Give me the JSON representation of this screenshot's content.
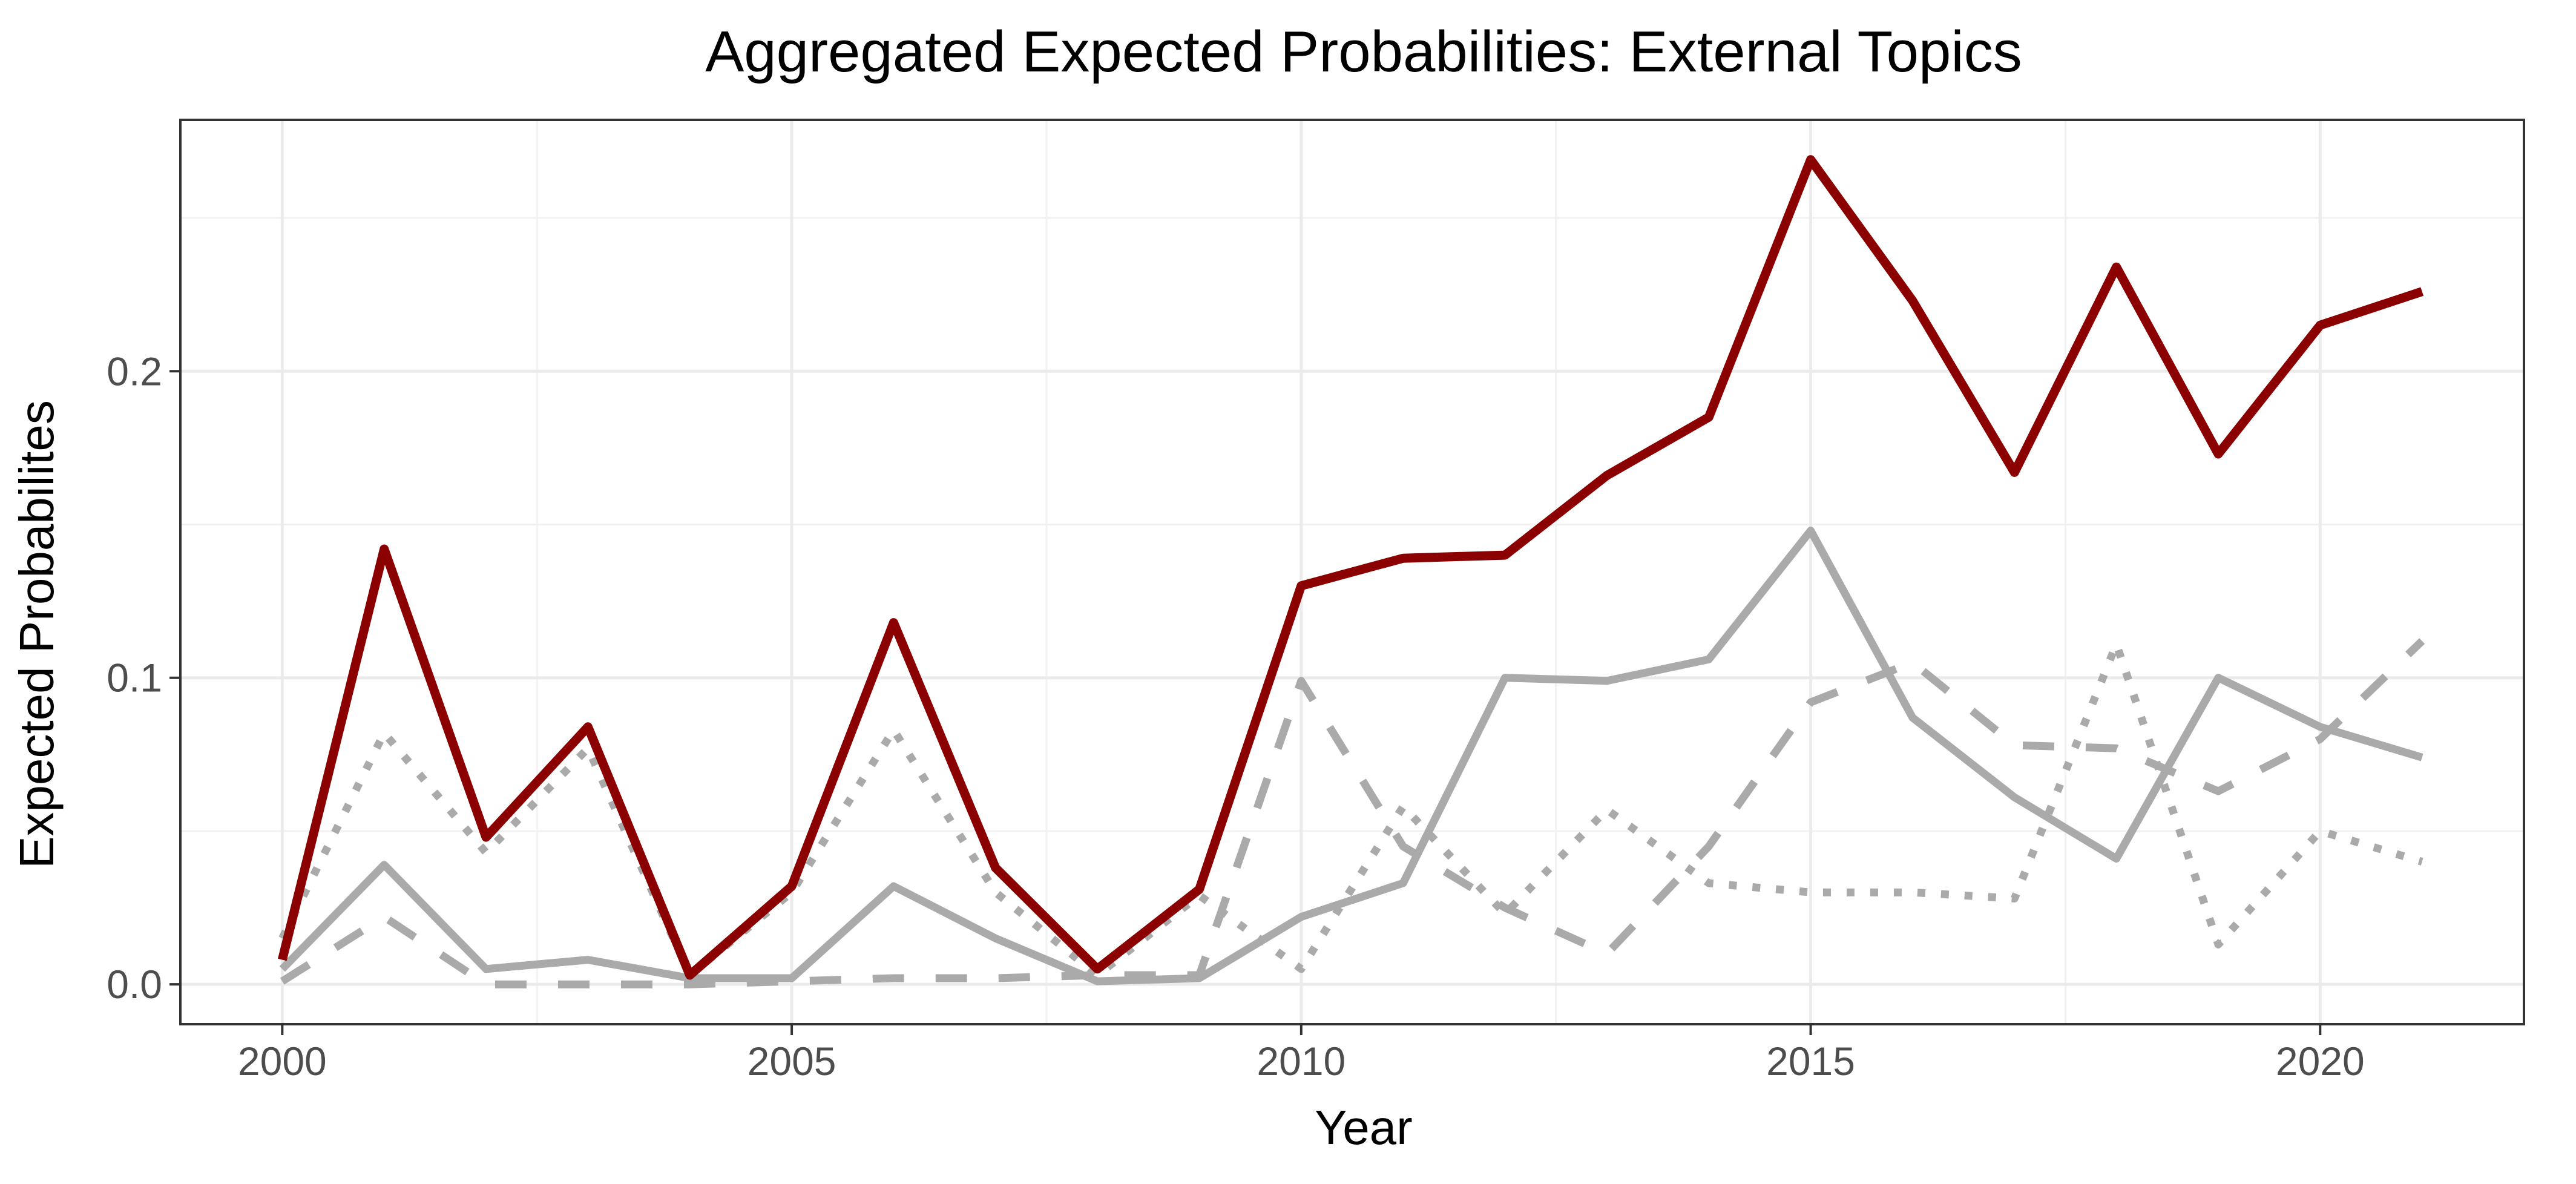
{
  "chart_data": {
    "type": "line",
    "title": "Aggregated Expected Probabilities: External Topics",
    "xlabel": "Year",
    "ylabel": "Expected Probabilites",
    "xlim": [
      1999,
      2022
    ],
    "ylim": [
      -0.013,
      0.282
    ],
    "x_ticks": [
      2000,
      2005,
      2010,
      2015,
      2020
    ],
    "x_tick_labels": [
      "2000",
      "2005",
      "2010",
      "2015",
      "2020"
    ],
    "y_ticks": [
      0.0,
      0.1,
      0.2
    ],
    "y_tick_labels": [
      "0.0",
      "0.1",
      "0.2"
    ],
    "x_minor_ticks": [
      2002.5,
      2007.5,
      2012.5,
      2017.5
    ],
    "y_minor_ticks": [
      0.05,
      0.15,
      0.25
    ],
    "grid": true,
    "legend": "none",
    "x": [
      2000,
      2001,
      2002,
      2003,
      2004,
      2005,
      2006,
      2007,
      2008,
      2009,
      2010,
      2011,
      2012,
      2013,
      2014,
      2015,
      2016,
      2017,
      2018,
      2019,
      2020,
      2021
    ],
    "series": [
      {
        "name": "gray-dotted",
        "color": "#aaaaaa",
        "style": "dotted",
        "values": [
          0.015,
          0.082,
          0.043,
          0.077,
          0.003,
          0.03,
          0.083,
          0.03,
          0.003,
          0.029,
          0.005,
          0.058,
          0.023,
          0.057,
          0.033,
          0.03,
          0.03,
          0.028,
          0.111,
          0.013,
          0.05,
          0.04
        ]
      },
      {
        "name": "gray-dashed",
        "color": "#aaaaaa",
        "style": "dashed",
        "values": [
          0.001,
          0.022,
          0.0,
          0.0,
          0.0,
          0.001,
          0.002,
          0.002,
          0.003,
          0.003,
          0.099,
          0.045,
          0.025,
          0.01,
          0.045,
          0.092,
          0.105,
          0.078,
          0.077,
          0.063,
          0.08,
          0.112
        ]
      },
      {
        "name": "gray-solid",
        "color": "#aaaaaa",
        "style": "solid",
        "values": [
          0.005,
          0.039,
          0.005,
          0.008,
          0.002,
          0.002,
          0.032,
          0.015,
          0.001,
          0.002,
          0.022,
          0.033,
          0.1,
          0.099,
          0.106,
          0.148,
          0.087,
          0.061,
          0.041,
          0.1,
          0.084,
          0.074
        ]
      },
      {
        "name": "red-solid",
        "color": "#8b0000",
        "style": "solid",
        "values": [
          0.008,
          0.142,
          0.048,
          0.084,
          0.003,
          0.032,
          0.118,
          0.038,
          0.005,
          0.031,
          0.13,
          0.139,
          0.14,
          0.166,
          0.185,
          0.269,
          0.223,
          0.167,
          0.234,
          0.173,
          0.215,
          0.226
        ]
      }
    ]
  }
}
